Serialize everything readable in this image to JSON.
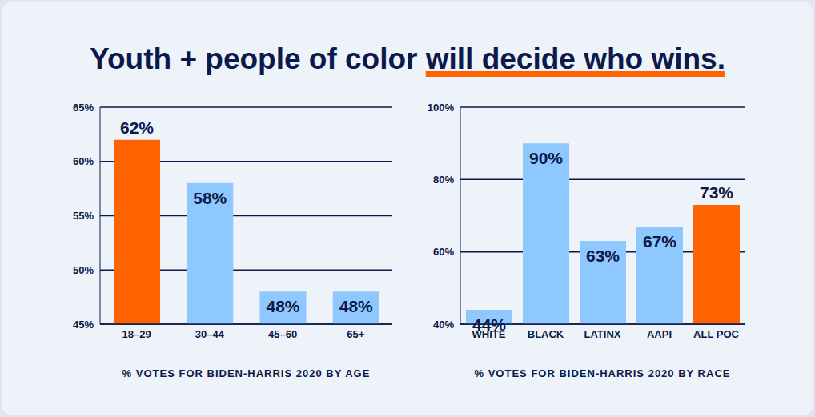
{
  "title": "Youth + people of color will decide who wins.",
  "title_highlight": "will decide who wins.",
  "chart_data": [
    {
      "type": "bar",
      "x_label": "% VOTES FOR BIDEN-HARRIS 2020 BY AGE",
      "categories": [
        "18–29",
        "30–44",
        "45–60",
        "65+"
      ],
      "values": [
        62,
        58,
        48,
        48
      ],
      "value_labels": [
        "62%",
        "58%",
        "48%",
        "48%"
      ],
      "colors": [
        "#ff6200",
        "#8ec8ff",
        "#8ec8ff",
        "#8ec8ff"
      ],
      "ylim": [
        45,
        65
      ],
      "yticks": [
        {
          "value": 45,
          "label": "45%"
        },
        {
          "value": 50,
          "label": "50%"
        },
        {
          "value": 55,
          "label": "55%"
        },
        {
          "value": 60,
          "label": "60%"
        },
        {
          "value": 65,
          "label": "65%"
        }
      ],
      "grid": true,
      "data_labels": true
    },
    {
      "type": "bar",
      "x_label": "% VOTES FOR BIDEN-HARRIS 2020 BY RACE",
      "categories": [
        "WHITE",
        "BLACK",
        "LATINX",
        "AAPI",
        "ALL POC"
      ],
      "values": [
        44,
        90,
        63,
        67,
        73
      ],
      "value_labels": [
        "44%",
        "90%",
        "63%",
        "67%",
        "73%"
      ],
      "colors": [
        "#8ec8ff",
        "#8ec8ff",
        "#8ec8ff",
        "#8ec8ff",
        "#ff6200"
      ],
      "ylim": [
        40,
        100
      ],
      "yticks": [
        {
          "value": 40,
          "label": "40%"
        },
        {
          "value": 60,
          "label": "60%"
        },
        {
          "value": 80,
          "label": "80%"
        },
        {
          "value": 100,
          "label": "100%"
        }
      ],
      "grid": true,
      "data_labels": true
    }
  ]
}
